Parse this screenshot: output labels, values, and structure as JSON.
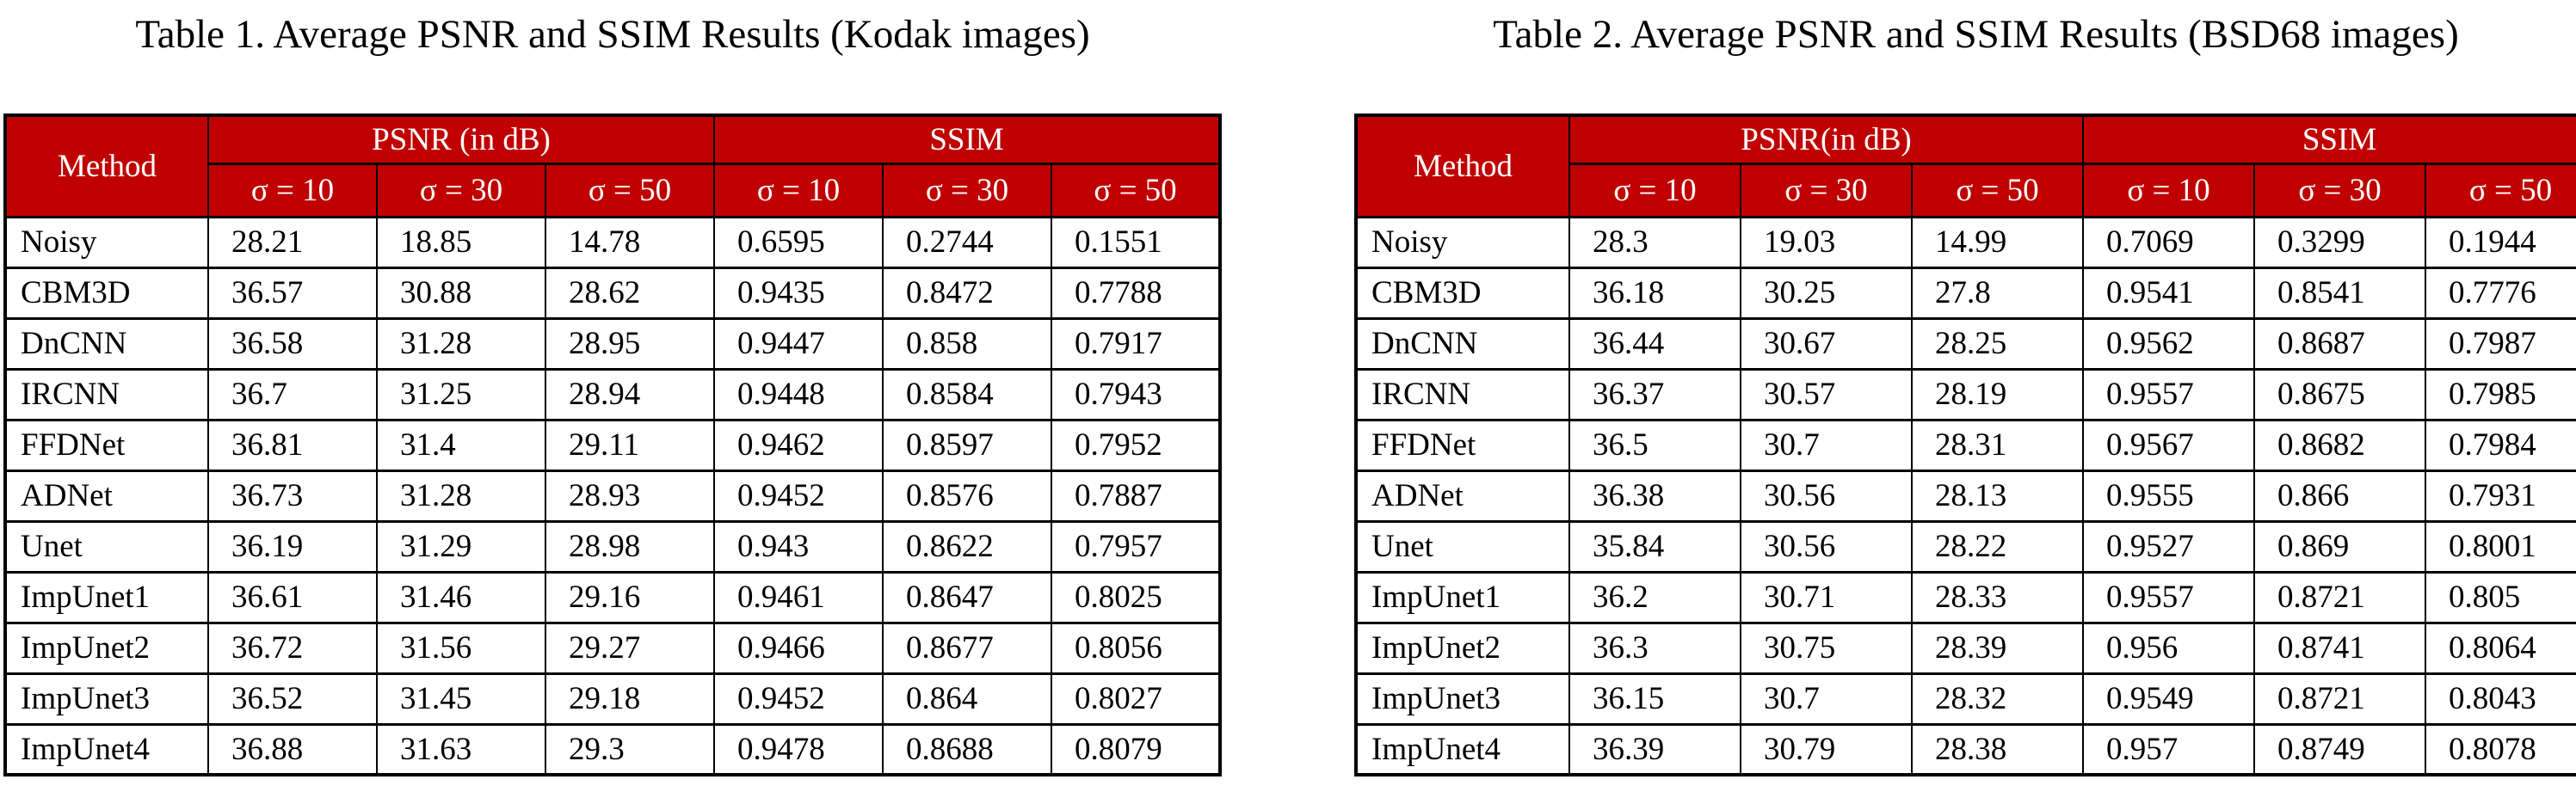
{
  "colors": {
    "header_bg": "#C00000",
    "header_text": "#FFFFFF",
    "border": "#000000",
    "body_text": "#000000",
    "page_bg": "#FFFFFF"
  },
  "tables": [
    {
      "title": "Table 1. Average PSNR and SSIM Results (Kodak images)",
      "method_header": "Method",
      "psnr_header": "PSNR (in dB)",
      "ssim_header": "SSIM",
      "sigma_headers": [
        "σ = 10",
        "σ = 30",
        "σ = 50",
        "σ = 10",
        "σ = 30",
        "σ = 50"
      ],
      "rows": [
        {
          "method": "Noisy",
          "values": [
            "28.21",
            "18.85",
            "14.78",
            "0.6595",
            "0.2744",
            "0.1551"
          ]
        },
        {
          "method": "CBM3D",
          "values": [
            "36.57",
            "30.88",
            "28.62",
            "0.9435",
            "0.8472",
            "0.7788"
          ]
        },
        {
          "method": "DnCNN",
          "values": [
            "36.58",
            "31.28",
            "28.95",
            "0.9447",
            "0.858",
            "0.7917"
          ]
        },
        {
          "method": "IRCNN",
          "values": [
            "36.7",
            "31.25",
            "28.94",
            "0.9448",
            "0.8584",
            "0.7943"
          ]
        },
        {
          "method": "FFDNet",
          "values": [
            "36.81",
            "31.4",
            "29.11",
            "0.9462",
            "0.8597",
            "0.7952"
          ]
        },
        {
          "method": "ADNet",
          "values": [
            "36.73",
            "31.28",
            "28.93",
            "0.9452",
            "0.8576",
            "0.7887"
          ]
        },
        {
          "method": "Unet",
          "values": [
            "36.19",
            "31.29",
            "28.98",
            "0.943",
            "0.8622",
            "0.7957"
          ]
        },
        {
          "method": "ImpUnet1",
          "values": [
            "36.61",
            "31.46",
            "29.16",
            "0.9461",
            "0.8647",
            "0.8025"
          ]
        },
        {
          "method": "ImpUnet2",
          "values": [
            "36.72",
            "31.56",
            "29.27",
            "0.9466",
            "0.8677",
            "0.8056"
          ]
        },
        {
          "method": "ImpUnet3",
          "values": [
            "36.52",
            "31.45",
            "29.18",
            "0.9452",
            "0.864",
            "0.8027"
          ]
        },
        {
          "method": "ImpUnet4",
          "values": [
            "36.88",
            "31.63",
            "29.3",
            "0.9478",
            "0.8688",
            "0.8079"
          ]
        }
      ]
    },
    {
      "title": "Table 2. Average PSNR and SSIM Results (BSD68 images)",
      "method_header": "Method",
      "psnr_header": "PSNR(in dB)",
      "ssim_header": "SSIM",
      "sigma_headers": [
        "σ = 10",
        "σ = 30",
        "σ = 50",
        "σ = 10",
        "σ = 30",
        "σ = 50"
      ],
      "rows": [
        {
          "method": "Noisy",
          "values": [
            "28.3",
            "19.03",
            "14.99",
            "0.7069",
            "0.3299",
            "0.1944"
          ]
        },
        {
          "method": "CBM3D",
          "values": [
            "36.18",
            "30.25",
            "27.8",
            "0.9541",
            "0.8541",
            "0.7776"
          ]
        },
        {
          "method": "DnCNN",
          "values": [
            "36.44",
            "30.67",
            "28.25",
            "0.9562",
            "0.8687",
            "0.7987"
          ]
        },
        {
          "method": "IRCNN",
          "values": [
            "36.37",
            "30.57",
            "28.19",
            "0.9557",
            "0.8675",
            "0.7985"
          ]
        },
        {
          "method": "FFDNet",
          "values": [
            "36.5",
            "30.7",
            "28.31",
            "0.9567",
            "0.8682",
            "0.7984"
          ]
        },
        {
          "method": "ADNet",
          "values": [
            "36.38",
            "30.56",
            "28.13",
            "0.9555",
            "0.866",
            "0.7931"
          ]
        },
        {
          "method": "Unet",
          "values": [
            "35.84",
            "30.56",
            "28.22",
            "0.9527",
            "0.869",
            "0.8001"
          ]
        },
        {
          "method": "ImpUnet1",
          "values": [
            "36.2",
            "30.71",
            "28.33",
            "0.9557",
            "0.8721",
            "0.805"
          ]
        },
        {
          "method": "ImpUnet2",
          "values": [
            "36.3",
            "30.75",
            "28.39",
            "0.956",
            "0.8741",
            "0.8064"
          ]
        },
        {
          "method": "ImpUnet3",
          "values": [
            "36.15",
            "30.7",
            "28.32",
            "0.9549",
            "0.8721",
            "0.8043"
          ]
        },
        {
          "method": "ImpUnet4",
          "values": [
            "36.39",
            "30.79",
            "28.38",
            "0.957",
            "0.8749",
            "0.8078"
          ]
        }
      ]
    }
  ]
}
